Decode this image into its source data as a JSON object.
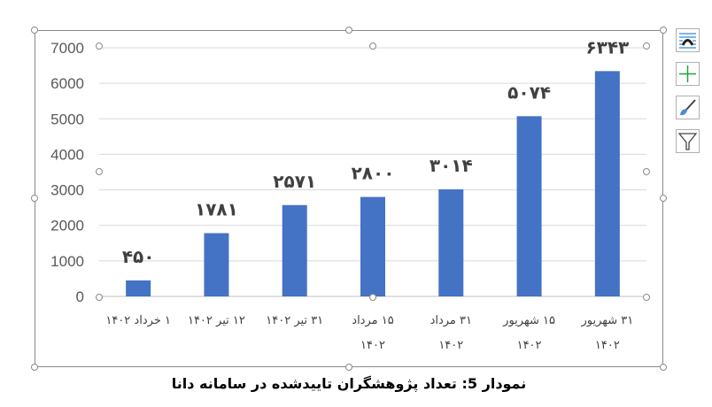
{
  "chart_data": {
    "type": "bar",
    "categories": [
      "۱ خرداد ۱۴۰۲",
      "۱۲ تیر ۱۴۰۲",
      "۳۱ تیر ۱۴۰۲",
      "۱۵ مرداد|۱۴۰۲",
      "۳۱ مرداد|۱۴۰۲",
      "۱۵ شهریور|۱۴۰۲",
      "۳۱ شهریور|۱۴۰۲"
    ],
    "values": [
      450,
      1781,
      2571,
      2800,
      3014,
      5074,
      6343
    ],
    "data_labels": [
      "۴۵۰",
      "۱۷۸۱",
      "۲۵۷۱",
      "۲۸۰۰",
      "۳۰۱۴",
      "۵۰۷۴",
      "۶۳۴۳"
    ],
    "yticks": [
      0,
      1000,
      2000,
      3000,
      4000,
      5000,
      6000,
      7000
    ],
    "ylim": [
      0,
      7000
    ],
    "grid": true,
    "bar_color": "#4472C4",
    "title": ""
  },
  "caption": "نمودار 5: تعداد پژوهشگران تاییدشده در سامانه دانا",
  "tools": [
    "chart-layout-icon",
    "chart-elements-plus-icon",
    "chart-styles-brush-icon",
    "chart-filter-icon"
  ]
}
